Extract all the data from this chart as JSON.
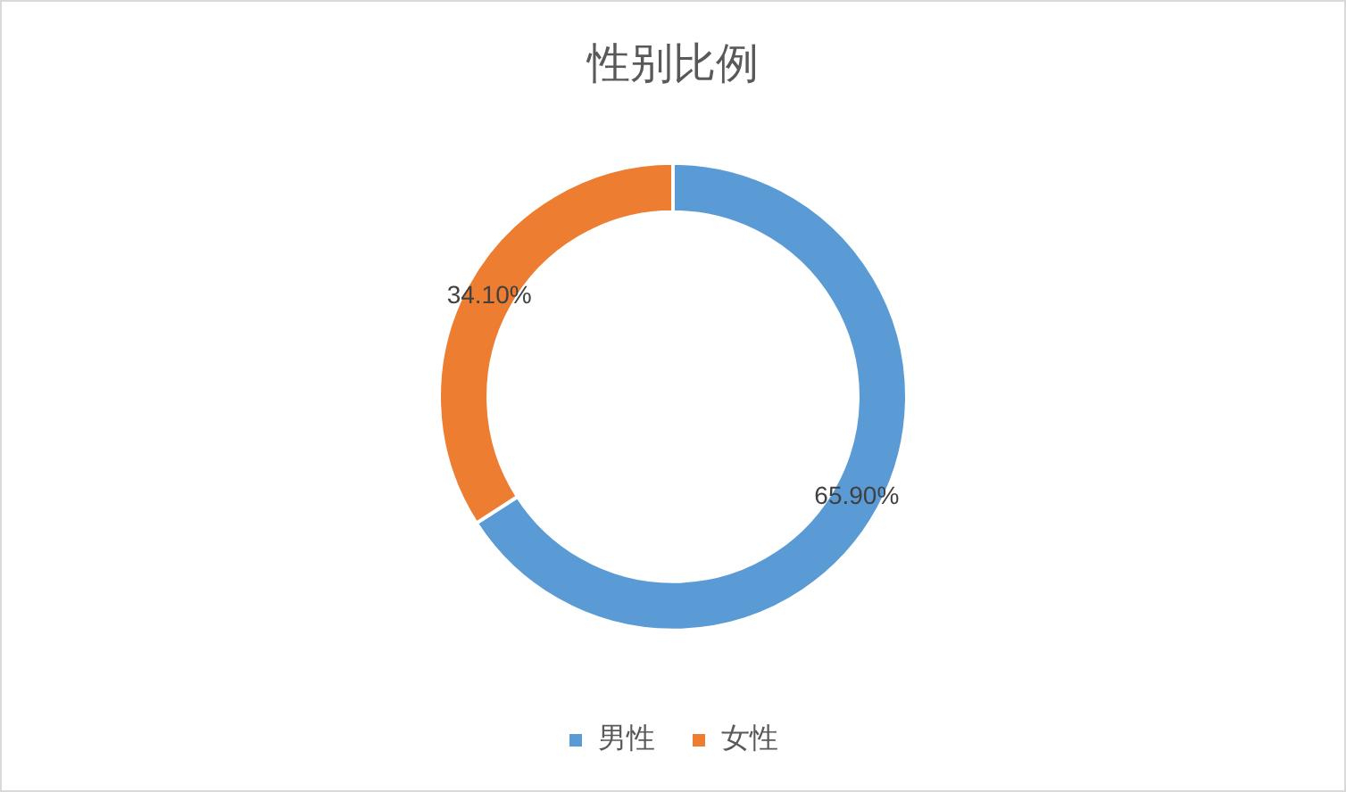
{
  "chart_data": {
    "type": "donut",
    "title": "性别比例",
    "categories": [
      "男性",
      "女性"
    ],
    "values": [
      65.9,
      34.1
    ],
    "colors": [
      "#5b9bd5",
      "#ed7d31"
    ],
    "value_labels": [
      "65.90%",
      "34.10%"
    ],
    "legend": "bottom"
  }
}
